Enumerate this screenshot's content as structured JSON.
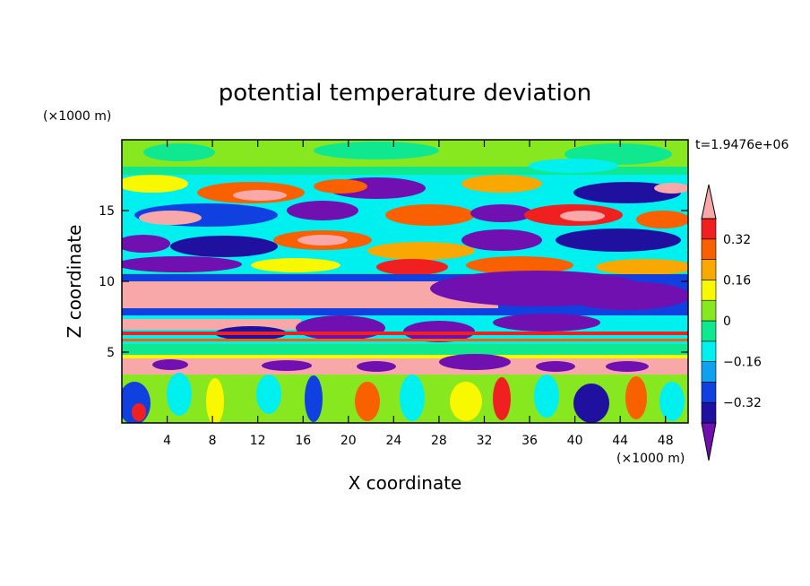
{
  "chart_data": {
    "type": "heatmap",
    "title": "potential temperature deviation",
    "time_label": "t=1.9476e+06",
    "xlabel": "X coordinate",
    "ylabel": "Z coordinate",
    "x_unit": "(×1000 m)",
    "z_unit": "(×1000 m)",
    "xlim": [
      0,
      50
    ],
    "zlim": [
      0,
      20
    ],
    "x_ticks": [
      4,
      8,
      12,
      16,
      20,
      24,
      28,
      32,
      36,
      40,
      44,
      48
    ],
    "z_ticks": [
      5,
      10,
      15
    ],
    "colorbar": {
      "labels": [
        {
          "value": 0.32,
          "text": "0.32"
        },
        {
          "value": 0.16,
          "text": "0.16"
        },
        {
          "value": 0,
          "text": "0"
        },
        {
          "value": -0.16,
          "text": "−0.16"
        },
        {
          "value": -0.32,
          "text": "−0.32"
        }
      ],
      "levels": [
        -0.4,
        -0.32,
        -0.24,
        -0.16,
        -0.08,
        0,
        0.08,
        0.16,
        0.24,
        0.32,
        0.4
      ],
      "colors": [
        "#7010b0",
        "#2010a0",
        "#1040e0",
        "#10a0f0",
        "#00f0f0",
        "#10e890",
        "#88e820",
        "#f8f800",
        "#f8a800",
        "#f86000",
        "#f02020",
        "#f8a8a8"
      ]
    },
    "bands": [
      {
        "z_range": [
          17.8,
          20
        ],
        "dominant_color": "#10e890",
        "note": "green/light-green upper layer"
      },
      {
        "z_range": [
          11,
          17.8
        ],
        "dominant_color": "mixed",
        "note": "alternating red, pink, blue and purple wave patches"
      },
      {
        "z_range": [
          8.2,
          10.2
        ],
        "dominant_color": "#f8a8a8",
        "note": "broad pink sheet, purple to the right"
      },
      {
        "z_range": [
          5.8,
          7.6
        ],
        "dominant_color": "#7010b0",
        "note": "purple blobs with red/pink stripes"
      },
      {
        "z_range": [
          4.6,
          5.8
        ],
        "dominant_color": "#10e890",
        "note": "green stripe"
      },
      {
        "z_range": [
          3.5,
          4.6
        ],
        "dominant_color": "#f8a8a8",
        "note": "pink stripe with purple bumps"
      },
      {
        "z_range": [
          0,
          3.5
        ],
        "dominant_color": "mixed",
        "note": "turbulent convective plumes"
      }
    ]
  }
}
